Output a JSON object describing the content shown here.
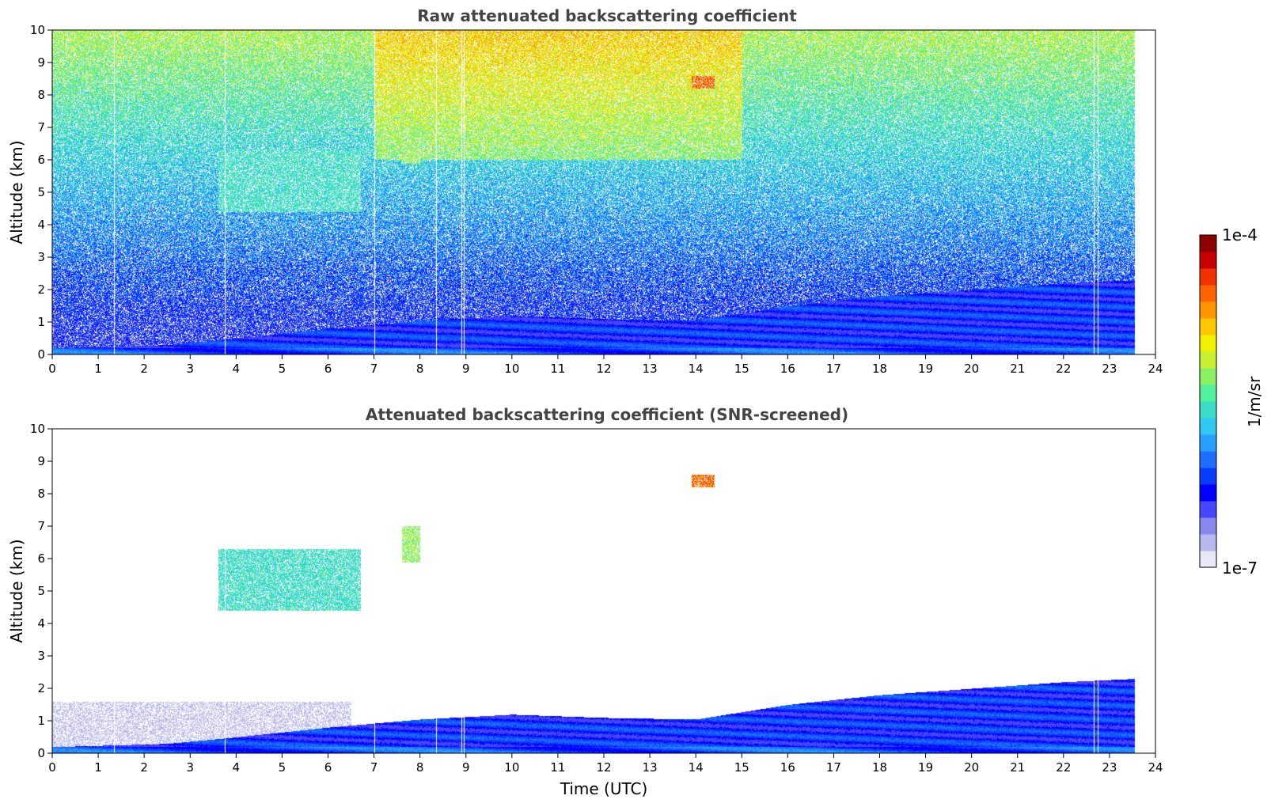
{
  "chart_data": [
    {
      "type": "heatmap",
      "title": "Raw attenuated backscattering coefficient",
      "xlabel": "",
      "ylabel": "Altitude (km)",
      "xlim": [
        0,
        24
      ],
      "ylim": [
        0,
        10
      ],
      "xticks": [
        0,
        1,
        2,
        3,
        4,
        5,
        6,
        7,
        8,
        9,
        10,
        11,
        12,
        13,
        14,
        15,
        16,
        17,
        18,
        19,
        20,
        21,
        22,
        23,
        24
      ],
      "yticks": [
        0,
        1,
        2,
        3,
        4,
        5,
        6,
        7,
        8,
        9,
        10
      ],
      "data_end_time": 23.55,
      "gap_times": [
        1.35,
        3.75,
        7.0,
        8.35,
        8.9,
        8.95,
        22.65,
        22.75
      ],
      "boundary_layer_top": [
        [
          0,
          0.2
        ],
        [
          2.5,
          0.3
        ],
        [
          4,
          0.5
        ],
        [
          6,
          0.8
        ],
        [
          8,
          1.05
        ],
        [
          10,
          1.2
        ],
        [
          12,
          1.1
        ],
        [
          14,
          1.05
        ],
        [
          16,
          1.5
        ],
        [
          18,
          1.8
        ],
        [
          20,
          2.0
        ],
        [
          22,
          2.2
        ],
        [
          23.5,
          2.3
        ]
      ],
      "cloud_layers": [
        {
          "t0": 3.6,
          "t1": 6.7,
          "alt_bottom": 4.4,
          "alt_top": 6.3,
          "level": 0.48
        },
        {
          "t0": 7.6,
          "t1": 8.0,
          "alt_bottom": 5.9,
          "alt_top": 7.0,
          "level": 0.58
        },
        {
          "t0": 13.9,
          "t1": 14.4,
          "alt_bottom": 8.2,
          "alt_top": 8.6,
          "level": 0.82
        }
      ]
    },
    {
      "type": "heatmap",
      "title": "Attenuated backscattering coefficient (SNR-screened)",
      "xlabel": "Time (UTC)",
      "ylabel": "Altitude (km)",
      "xlim": [
        0,
        24
      ],
      "ylim": [
        0,
        10
      ],
      "xticks": [
        0,
        1,
        2,
        3,
        4,
        5,
        6,
        7,
        8,
        9,
        10,
        11,
        12,
        13,
        14,
        15,
        16,
        17,
        18,
        19,
        20,
        21,
        22,
        23,
        24
      ],
      "yticks": [
        0,
        1,
        2,
        3,
        4,
        5,
        6,
        7,
        8,
        9,
        10
      ],
      "data_end_time": 23.55,
      "gap_times": [
        1.35,
        3.75,
        7.0,
        8.35,
        8.9,
        8.95,
        22.65,
        22.75
      ],
      "boundary_layer_top": [
        [
          0,
          0.2
        ],
        [
          2.5,
          0.3
        ],
        [
          4,
          0.5
        ],
        [
          6,
          0.8
        ],
        [
          8,
          1.05
        ],
        [
          10,
          1.2
        ],
        [
          12,
          1.1
        ],
        [
          14,
          1.05
        ],
        [
          16,
          1.5
        ],
        [
          18,
          1.8
        ],
        [
          20,
          2.0
        ],
        [
          22,
          2.2
        ],
        [
          23.5,
          2.3
        ]
      ],
      "cloud_layers": [
        {
          "t0": 3.6,
          "t1": 6.7,
          "alt_bottom": 4.4,
          "alt_top": 6.3,
          "level": 0.48
        },
        {
          "t0": 7.6,
          "t1": 8.0,
          "alt_bottom": 5.9,
          "alt_top": 7.0,
          "level": 0.58
        },
        {
          "t0": 13.9,
          "t1": 14.4,
          "alt_bottom": 8.2,
          "alt_top": 8.6,
          "level": 0.82
        }
      ]
    }
  ],
  "colorbar": {
    "label": "1/m/sr",
    "max_label": "1e-4",
    "min_label": "1e-7",
    "colors": [
      "#e8e8f8",
      "#b8b8f0",
      "#8888ee",
      "#4646ff",
      "#0000ff",
      "#0a3cff",
      "#1e6eff",
      "#28a0ff",
      "#32c8f0",
      "#3cdcc8",
      "#50f09c",
      "#8cf064",
      "#c8f032",
      "#f0f000",
      "#ffc800",
      "#ff9600",
      "#ff6400",
      "#f03200",
      "#c80000",
      "#8c0000"
    ]
  }
}
